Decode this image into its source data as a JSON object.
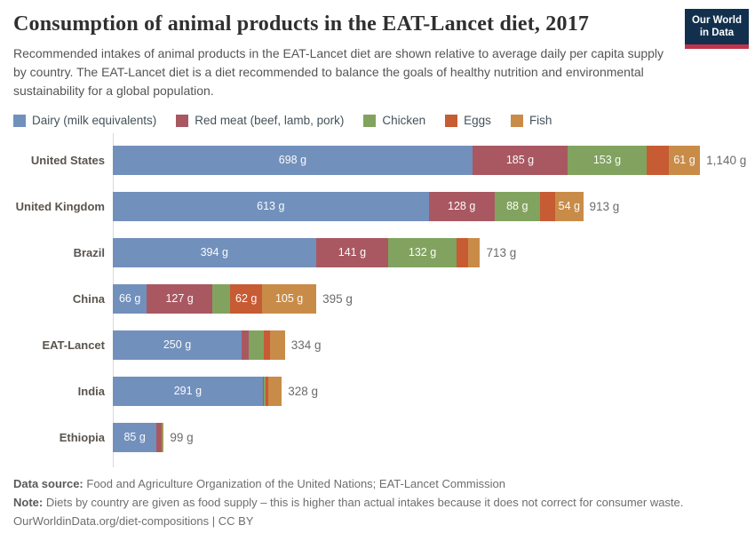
{
  "header": {
    "title": "Consumption of animal products in the EAT-Lancet diet, 2017",
    "subtitle": "Recommended intakes of animal products in the EAT-Lancet diet are shown relative to average daily per capita supply by country. The EAT-Lancet diet is a diet recommended to balance the goals of healthy nutrition and environmental sustainability for a global population.",
    "logo": {
      "line1": "Our World",
      "line2": "in Data",
      "bg_color": "#12304e",
      "stripe_color": "#c0344b"
    }
  },
  "chart_data": {
    "type": "bar",
    "orientation": "horizontal_stacked",
    "unit": "g",
    "xlim": [
      0,
      1140
    ],
    "grid": false,
    "legend_position": "top",
    "series_names": [
      "Dairy (milk equivalents)",
      "Red meat (beef, lamb, pork)",
      "Chicken",
      "Eggs",
      "Fish"
    ],
    "series_colors": [
      "#7290bc",
      "#a95862",
      "#81a35f",
      "#c75b33",
      "#c98c48"
    ],
    "categories": [
      "United States",
      "United Kingdom",
      "Brazil",
      "China",
      "EAT-Lancet",
      "India",
      "Ethiopia"
    ],
    "rows": [
      {
        "country": "United States",
        "values": [
          698,
          185,
          153,
          43,
          61
        ],
        "segment_labels": [
          "698 g",
          "185 g",
          "153 g",
          "",
          "61 g"
        ],
        "total": 1140,
        "total_label": "1,140 g"
      },
      {
        "country": "United Kingdom",
        "values": [
          613,
          128,
          88,
          30,
          54
        ],
        "segment_labels": [
          "613 g",
          "128 g",
          "88 g",
          "",
          "54 g"
        ],
        "total": 913,
        "total_label": "913 g"
      },
      {
        "country": "Brazil",
        "values": [
          394,
          141,
          132,
          22,
          24
        ],
        "segment_labels": [
          "394 g",
          "141 g",
          "132 g",
          "",
          ""
        ],
        "total": 713,
        "total_label": "713 g"
      },
      {
        "country": "China",
        "values": [
          66,
          127,
          35,
          62,
          105
        ],
        "segment_labels": [
          "66 g",
          "127 g",
          "",
          "62 g",
          "105 g"
        ],
        "total": 395,
        "total_label": "395 g"
      },
      {
        "country": "EAT-Lancet",
        "values": [
          250,
          14,
          29,
          13,
          28
        ],
        "segment_labels": [
          "250 g",
          "",
          "",
          "",
          ""
        ],
        "total": 334,
        "total_label": "334 g"
      },
      {
        "country": "India",
        "values": [
          291,
          2,
          4,
          5,
          26
        ],
        "segment_labels": [
          "291 g",
          "",
          "",
          "",
          ""
        ],
        "total": 328,
        "total_label": "328 g"
      },
      {
        "country": "Ethiopia",
        "values": [
          85,
          10,
          1,
          1,
          2
        ],
        "segment_labels": [
          "85 g",
          "",
          "",
          "",
          ""
        ],
        "total": 99,
        "total_label": "99 g"
      }
    ]
  },
  "footer": {
    "data_source_label": "Data source:",
    "data_source": "Food and Agriculture Organization of the United Nations; EAT-Lancet Commission",
    "note_label": "Note:",
    "note": "Diets by country are given as food supply – this is higher than actual intakes because it does not correct for consumer waste.",
    "citation": "OurWorldinData.org/diet-compositions | CC BY"
  }
}
